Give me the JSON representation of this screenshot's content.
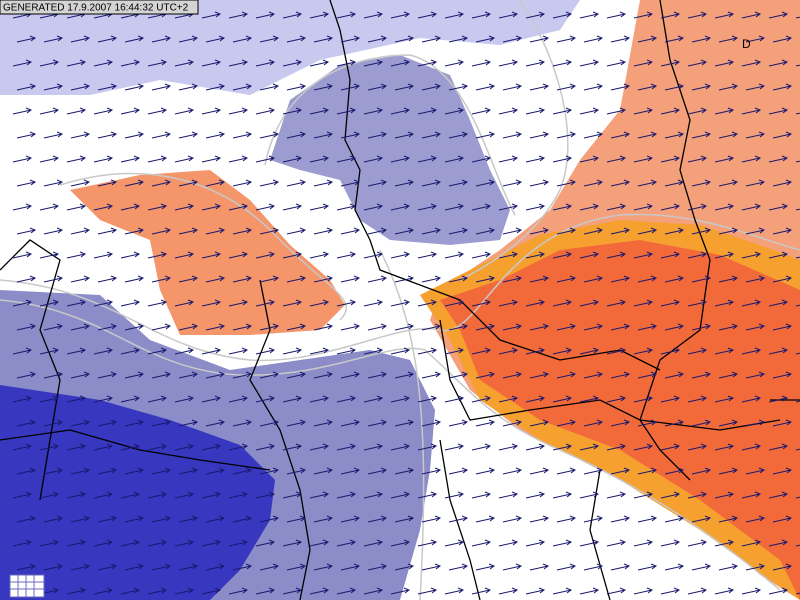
{
  "header": {
    "generated": "GENERATED 17.9.2007 16:44:32 UTC+2"
  },
  "map": {
    "labels": [
      "D"
    ]
  }
}
